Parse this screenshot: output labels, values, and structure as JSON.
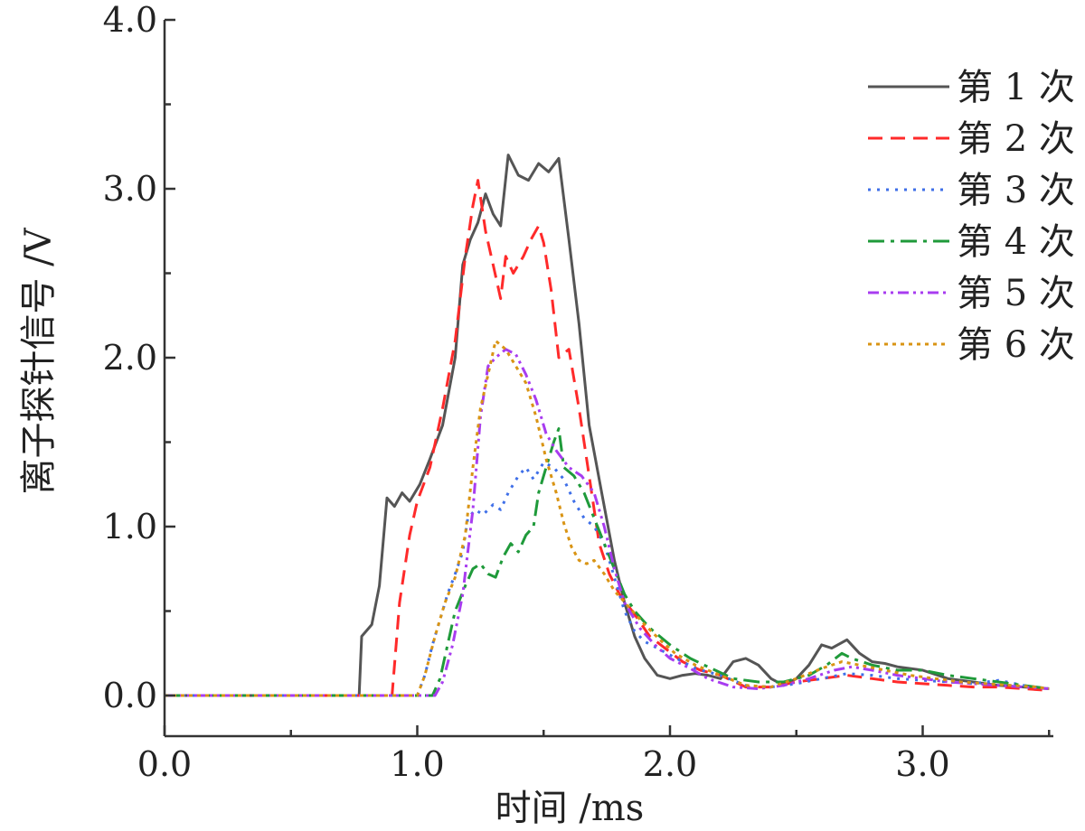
{
  "chart_data": {
    "type": "line",
    "title": "",
    "xlabel": "时间 /ms",
    "ylabel": "离子探针信号 /V",
    "xlim": [
      0,
      3.5
    ],
    "ylim": [
      -0.25,
      4.0
    ],
    "xticks": [
      0,
      1,
      2,
      3
    ],
    "xtick_labels": [
      "0.0",
      "1.0",
      "2.0",
      "3.0"
    ],
    "yticks": [
      0,
      1,
      2,
      3,
      4
    ],
    "ytick_labels": [
      "0.0",
      "1.0",
      "2.0",
      "3.0",
      "4.0"
    ],
    "grid": false,
    "legend_position": "top-right",
    "series": [
      {
        "name": "第 1 次",
        "color": "#555555",
        "dash": "solid",
        "points": [
          [
            0,
            0
          ],
          [
            0.77,
            0
          ],
          [
            0.78,
            0.35
          ],
          [
            0.82,
            0.42
          ],
          [
            0.85,
            0.65
          ],
          [
            0.88,
            1.17
          ],
          [
            0.91,
            1.12
          ],
          [
            0.94,
            1.2
          ],
          [
            0.97,
            1.15
          ],
          [
            1.01,
            1.25
          ],
          [
            1.05,
            1.4
          ],
          [
            1.1,
            1.6
          ],
          [
            1.15,
            2.0
          ],
          [
            1.18,
            2.55
          ],
          [
            1.21,
            2.7
          ],
          [
            1.24,
            2.8
          ],
          [
            1.27,
            2.97
          ],
          [
            1.3,
            2.85
          ],
          [
            1.33,
            2.78
          ],
          [
            1.36,
            3.2
          ],
          [
            1.4,
            3.08
          ],
          [
            1.44,
            3.05
          ],
          [
            1.48,
            3.15
          ],
          [
            1.52,
            3.1
          ],
          [
            1.56,
            3.18
          ],
          [
            1.6,
            2.7
          ],
          [
            1.64,
            2.2
          ],
          [
            1.68,
            1.6
          ],
          [
            1.73,
            1.2
          ],
          [
            1.78,
            0.8
          ],
          [
            1.82,
            0.55
          ],
          [
            1.86,
            0.35
          ],
          [
            1.9,
            0.22
          ],
          [
            1.95,
            0.12
          ],
          [
            2.0,
            0.1
          ],
          [
            2.05,
            0.12
          ],
          [
            2.1,
            0.13
          ],
          [
            2.15,
            0.12
          ],
          [
            2.2,
            0.1
          ],
          [
            2.25,
            0.2
          ],
          [
            2.3,
            0.22
          ],
          [
            2.35,
            0.18
          ],
          [
            2.4,
            0.1
          ],
          [
            2.45,
            0.06
          ],
          [
            2.5,
            0.1
          ],
          [
            2.55,
            0.18
          ],
          [
            2.6,
            0.3
          ],
          [
            2.64,
            0.28
          ],
          [
            2.7,
            0.33
          ],
          [
            2.75,
            0.25
          ],
          [
            2.8,
            0.2
          ],
          [
            2.85,
            0.19
          ],
          [
            2.9,
            0.17
          ],
          [
            3.0,
            0.15
          ],
          [
            3.1,
            0.1
          ],
          [
            3.2,
            0.08
          ],
          [
            3.3,
            0.06
          ],
          [
            3.4,
            0.05
          ],
          [
            3.5,
            0.04
          ]
        ]
      },
      {
        "name": "第 2 次",
        "color": "#ff2a2a",
        "dash": "16 9",
        "points": [
          [
            0,
            0
          ],
          [
            0.9,
            0
          ],
          [
            0.93,
            0.55
          ],
          [
            0.97,
            0.95
          ],
          [
            1.0,
            1.15
          ],
          [
            1.05,
            1.35
          ],
          [
            1.1,
            1.7
          ],
          [
            1.15,
            2.1
          ],
          [
            1.19,
            2.6
          ],
          [
            1.22,
            2.9
          ],
          [
            1.24,
            3.05
          ],
          [
            1.27,
            2.75
          ],
          [
            1.3,
            2.55
          ],
          [
            1.33,
            2.35
          ],
          [
            1.35,
            2.6
          ],
          [
            1.38,
            2.5
          ],
          [
            1.42,
            2.6
          ],
          [
            1.45,
            2.7
          ],
          [
            1.48,
            2.78
          ],
          [
            1.5,
            2.68
          ],
          [
            1.53,
            2.4
          ],
          [
            1.56,
            2.0
          ],
          [
            1.6,
            2.05
          ],
          [
            1.64,
            1.7
          ],
          [
            1.68,
            1.3
          ],
          [
            1.72,
            0.9
          ],
          [
            1.76,
            0.72
          ],
          [
            1.8,
            0.6
          ],
          [
            1.86,
            0.48
          ],
          [
            1.92,
            0.35
          ],
          [
            1.98,
            0.28
          ],
          [
            2.05,
            0.2
          ],
          [
            2.12,
            0.15
          ],
          [
            2.2,
            0.12
          ],
          [
            2.3,
            0.05
          ],
          [
            2.4,
            0.05
          ],
          [
            2.5,
            0.08
          ],
          [
            2.6,
            0.1
          ],
          [
            2.7,
            0.12
          ],
          [
            2.8,
            0.1
          ],
          [
            2.9,
            0.08
          ],
          [
            3.0,
            0.07
          ],
          [
            3.1,
            0.06
          ],
          [
            3.2,
            0.05
          ],
          [
            3.3,
            0.05
          ],
          [
            3.4,
            0.04
          ],
          [
            3.5,
            0.03
          ]
        ]
      },
      {
        "name": "第 3 次",
        "color": "#3f6fe8",
        "dash": "3 7",
        "points": [
          [
            0,
            0
          ],
          [
            1.0,
            0
          ],
          [
            1.03,
            0.12
          ],
          [
            1.06,
            0.3
          ],
          [
            1.09,
            0.45
          ],
          [
            1.12,
            0.6
          ],
          [
            1.15,
            0.72
          ],
          [
            1.18,
            0.85
          ],
          [
            1.2,
            1.05
          ],
          [
            1.23,
            1.1
          ],
          [
            1.26,
            1.07
          ],
          [
            1.3,
            1.13
          ],
          [
            1.33,
            1.1
          ],
          [
            1.36,
            1.2
          ],
          [
            1.4,
            1.3
          ],
          [
            1.43,
            1.35
          ],
          [
            1.46,
            1.28
          ],
          [
            1.5,
            1.38
          ],
          [
            1.54,
            1.35
          ],
          [
            1.58,
            1.28
          ],
          [
            1.62,
            1.15
          ],
          [
            1.66,
            1.05
          ],
          [
            1.7,
            1.0
          ],
          [
            1.74,
            0.9
          ],
          [
            1.78,
            0.7
          ],
          [
            1.82,
            0.5
          ],
          [
            1.86,
            0.38
          ],
          [
            1.9,
            0.32
          ],
          [
            1.95,
            0.28
          ],
          [
            2.0,
            0.24
          ],
          [
            2.05,
            0.2
          ],
          [
            2.1,
            0.16
          ],
          [
            2.2,
            0.12
          ],
          [
            2.3,
            0.06
          ],
          [
            2.4,
            0.05
          ],
          [
            2.5,
            0.07
          ],
          [
            2.6,
            0.1
          ],
          [
            2.7,
            0.13
          ],
          [
            2.8,
            0.12
          ],
          [
            2.9,
            0.1
          ],
          [
            3.0,
            0.09
          ],
          [
            3.1,
            0.08
          ],
          [
            3.2,
            0.07
          ],
          [
            3.3,
            0.09
          ],
          [
            3.4,
            0.06
          ],
          [
            3.5,
            0.04
          ]
        ]
      },
      {
        "name": "第 4 次",
        "color": "#1f9a3a",
        "dash": "18 7 4 7",
        "points": [
          [
            0,
            0
          ],
          [
            1.06,
            0
          ],
          [
            1.09,
            0.1
          ],
          [
            1.12,
            0.3
          ],
          [
            1.15,
            0.5
          ],
          [
            1.19,
            0.65
          ],
          [
            1.22,
            0.75
          ],
          [
            1.25,
            0.78
          ],
          [
            1.28,
            0.72
          ],
          [
            1.31,
            0.7
          ],
          [
            1.34,
            0.82
          ],
          [
            1.37,
            0.9
          ],
          [
            1.4,
            0.85
          ],
          [
            1.43,
            0.95
          ],
          [
            1.46,
            1.0
          ],
          [
            1.48,
            1.2
          ],
          [
            1.51,
            1.35
          ],
          [
            1.54,
            1.5
          ],
          [
            1.56,
            1.58
          ],
          [
            1.58,
            1.35
          ],
          [
            1.62,
            1.3
          ],
          [
            1.66,
            1.2
          ],
          [
            1.7,
            1.05
          ],
          [
            1.74,
            0.9
          ],
          [
            1.78,
            0.75
          ],
          [
            1.82,
            0.6
          ],
          [
            1.86,
            0.5
          ],
          [
            1.92,
            0.4
          ],
          [
            2.0,
            0.3
          ],
          [
            2.08,
            0.22
          ],
          [
            2.15,
            0.17
          ],
          [
            2.25,
            0.1
          ],
          [
            2.35,
            0.08
          ],
          [
            2.45,
            0.08
          ],
          [
            2.55,
            0.12
          ],
          [
            2.62,
            0.18
          ],
          [
            2.68,
            0.25
          ],
          [
            2.72,
            0.22
          ],
          [
            2.8,
            0.18
          ],
          [
            2.9,
            0.15
          ],
          [
            3.0,
            0.15
          ],
          [
            3.1,
            0.12
          ],
          [
            3.2,
            0.1
          ],
          [
            3.3,
            0.08
          ],
          [
            3.4,
            0.06
          ],
          [
            3.5,
            0.04
          ]
        ]
      },
      {
        "name": "第 5 次",
        "color": "#a83cf0",
        "dash": "12 5 3 5 3 5",
        "points": [
          [
            0,
            0
          ],
          [
            1.07,
            0
          ],
          [
            1.1,
            0.08
          ],
          [
            1.14,
            0.3
          ],
          [
            1.18,
            0.6
          ],
          [
            1.22,
            1.1
          ],
          [
            1.25,
            1.65
          ],
          [
            1.28,
            1.95
          ],
          [
            1.31,
            2.0
          ],
          [
            1.35,
            2.05
          ],
          [
            1.39,
            2.02
          ],
          [
            1.43,
            1.9
          ],
          [
            1.47,
            1.75
          ],
          [
            1.51,
            1.55
          ],
          [
            1.55,
            1.45
          ],
          [
            1.6,
            1.35
          ],
          [
            1.65,
            1.3
          ],
          [
            1.7,
            1.2
          ],
          [
            1.74,
            1.0
          ],
          [
            1.78,
            0.75
          ],
          [
            1.82,
            0.55
          ],
          [
            1.88,
            0.4
          ],
          [
            1.94,
            0.3
          ],
          [
            2.0,
            0.22
          ],
          [
            2.08,
            0.16
          ],
          [
            2.15,
            0.1
          ],
          [
            2.25,
            0.05
          ],
          [
            2.35,
            0.04
          ],
          [
            2.45,
            0.06
          ],
          [
            2.55,
            0.1
          ],
          [
            2.65,
            0.15
          ],
          [
            2.72,
            0.17
          ],
          [
            2.8,
            0.15
          ],
          [
            2.9,
            0.12
          ],
          [
            3.0,
            0.1
          ],
          [
            3.1,
            0.08
          ],
          [
            3.2,
            0.07
          ],
          [
            3.3,
            0.06
          ],
          [
            3.4,
            0.05
          ],
          [
            3.5,
            0.04
          ]
        ]
      },
      {
        "name": "第 6 次",
        "color": "#d99414",
        "dash": "4 5",
        "points": [
          [
            0,
            0
          ],
          [
            1.0,
            0
          ],
          [
            1.03,
            0.12
          ],
          [
            1.07,
            0.35
          ],
          [
            1.11,
            0.55
          ],
          [
            1.15,
            0.7
          ],
          [
            1.19,
            0.95
          ],
          [
            1.22,
            1.35
          ],
          [
            1.25,
            1.7
          ],
          [
            1.28,
            1.9
          ],
          [
            1.31,
            2.1
          ],
          [
            1.35,
            2.05
          ],
          [
            1.39,
            1.95
          ],
          [
            1.43,
            1.85
          ],
          [
            1.47,
            1.65
          ],
          [
            1.51,
            1.4
          ],
          [
            1.55,
            1.2
          ],
          [
            1.58,
            1.02
          ],
          [
            1.61,
            0.88
          ],
          [
            1.64,
            0.8
          ],
          [
            1.67,
            0.78
          ],
          [
            1.7,
            0.8
          ],
          [
            1.74,
            0.72
          ],
          [
            1.78,
            0.62
          ],
          [
            1.84,
            0.52
          ],
          [
            1.9,
            0.42
          ],
          [
            1.96,
            0.33
          ],
          [
            2.02,
            0.25
          ],
          [
            2.1,
            0.18
          ],
          [
            2.2,
            0.12
          ],
          [
            2.3,
            0.06
          ],
          [
            2.4,
            0.05
          ],
          [
            2.5,
            0.1
          ],
          [
            2.6,
            0.16
          ],
          [
            2.68,
            0.2
          ],
          [
            2.75,
            0.18
          ],
          [
            2.85,
            0.15
          ],
          [
            2.95,
            0.12
          ],
          [
            3.05,
            0.1
          ],
          [
            3.15,
            0.08
          ],
          [
            3.25,
            0.07
          ],
          [
            3.35,
            0.06
          ],
          [
            3.45,
            0.05
          ],
          [
            3.5,
            0.04
          ]
        ]
      }
    ]
  }
}
